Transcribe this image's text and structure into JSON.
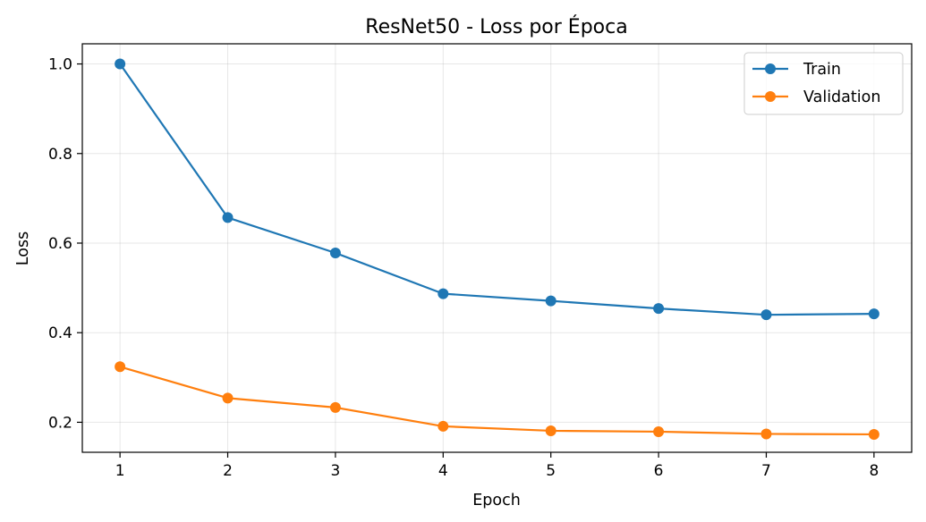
{
  "chart_data": {
    "type": "line",
    "title": "ResNet50 - Loss por Época",
    "xlabel": "Epoch",
    "ylabel": "Loss",
    "x": [
      1,
      2,
      3,
      4,
      5,
      6,
      7,
      8
    ],
    "xticks": [
      "1",
      "2",
      "3",
      "4",
      "5",
      "6",
      "7",
      "8"
    ],
    "yticks": [
      0.2,
      0.4,
      0.6,
      0.8,
      1.0
    ],
    "ytick_labels": [
      "0.2",
      "0.4",
      "0.6",
      "0.8",
      "1.0"
    ],
    "xlim": [
      0.65,
      8.35
    ],
    "ylim": [
      0.133,
      1.045
    ],
    "grid": true,
    "legend_position": "top-right",
    "series": [
      {
        "name": "Train",
        "color": "#1f77b4",
        "marker": "circle",
        "values": [
          1.0,
          0.657,
          0.578,
          0.487,
          0.471,
          0.454,
          0.44,
          0.442
        ]
      },
      {
        "name": "Validation",
        "color": "#ff7f0e",
        "marker": "circle",
        "values": [
          0.324,
          0.254,
          0.233,
          0.191,
          0.181,
          0.179,
          0.174,
          0.173
        ]
      }
    ]
  }
}
